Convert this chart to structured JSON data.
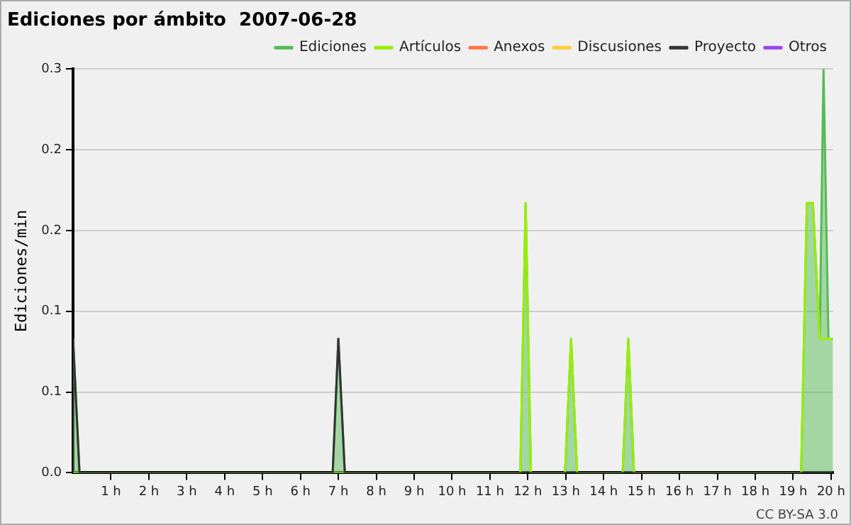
{
  "chart_data": {
    "type": "line",
    "title": "Ediciones por ámbito  2007-06-28",
    "ylabel": "Ediciones/min",
    "xlim": [
      0,
      20.05
    ],
    "ylim": [
      0,
      0.25
    ],
    "xticks": [
      {
        "value": 1,
        "label": "1 h"
      },
      {
        "value": 2,
        "label": "2 h"
      },
      {
        "value": 3,
        "label": "3 h"
      },
      {
        "value": 4,
        "label": "4 h"
      },
      {
        "value": 5,
        "label": "5 h"
      },
      {
        "value": 6,
        "label": "6 h"
      },
      {
        "value": 7,
        "label": "7 h"
      },
      {
        "value": 8,
        "label": "8 h"
      },
      {
        "value": 9,
        "label": "9 h"
      },
      {
        "value": 10,
        "label": "10 h"
      },
      {
        "value": 11,
        "label": "11 h"
      },
      {
        "value": 12,
        "label": "12 h"
      },
      {
        "value": 13,
        "label": "13 h"
      },
      {
        "value": 14,
        "label": "14 h"
      },
      {
        "value": 15,
        "label": "15 h"
      },
      {
        "value": 16,
        "label": "16 h"
      },
      {
        "value": 17,
        "label": "17 h"
      },
      {
        "value": 18,
        "label": "18 h"
      },
      {
        "value": 19,
        "label": "19 h"
      },
      {
        "value": 20,
        "label": "20 h"
      }
    ],
    "yticks": [
      {
        "value": 0,
        "label": "0.0"
      },
      {
        "value": 0.05,
        "label": "0.1"
      },
      {
        "value": 0.1,
        "label": "0.1"
      },
      {
        "value": 0.15,
        "label": "0.2"
      },
      {
        "value": 0.2,
        "label": "0.2"
      },
      {
        "value": 0.25,
        "label": "0.3"
      }
    ],
    "grid": "y",
    "legend": "top right",
    "marker": "none",
    "annotations": [
      "CC BY-SA 3.0"
    ],
    "series": [
      {
        "name": "Ediciones",
        "type": "area",
        "color": "#55bb55",
        "x": [
          0,
          0.17,
          6.85,
          7.0,
          7.17,
          11.8,
          11.94,
          12.08,
          12.98,
          13.14,
          13.3,
          14.5,
          14.65,
          14.8,
          19.21,
          19.36,
          19.52,
          19.7,
          19.8,
          19.93,
          20.05
        ],
        "values": [
          0.083,
          0,
          0,
          0.083,
          0,
          0,
          0.167,
          0,
          0,
          0.083,
          0,
          0,
          0.083,
          0,
          0,
          0.167,
          0.167,
          0.083,
          0.25,
          0.083,
          0.083
        ]
      },
      {
        "name": "Artículos",
        "color": "#99ee00",
        "x": [
          0,
          11.8,
          11.94,
          12.08,
          12.98,
          13.14,
          13.3,
          14.5,
          14.65,
          14.8,
          19.21,
          19.36,
          19.52,
          19.7,
          20.05
        ],
        "values": [
          0,
          0,
          0.167,
          0,
          0,
          0.083,
          0,
          0,
          0.083,
          0,
          0,
          0.167,
          0.167,
          0.083,
          0.083
        ]
      },
      {
        "name": "Anexos",
        "color": "#ff7744"
      },
      {
        "name": "Discusiones",
        "color": "#ffcc33"
      },
      {
        "name": "Proyecto",
        "color": "#333333",
        "x": [
          0,
          0.17,
          6.85,
          7.0,
          7.17,
          20.05
        ],
        "values": [
          0.083,
          0,
          0,
          0.083,
          0,
          0
        ]
      },
      {
        "name": "Otros",
        "color": "#9944ee"
      }
    ]
  }
}
